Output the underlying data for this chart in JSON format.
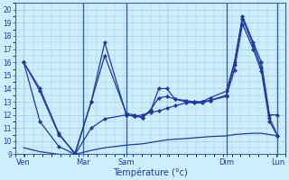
{
  "xlabel": "Température (°c)",
  "background_color": "#cceeff",
  "grid_color": "#aaccdd",
  "line_color": "#1a3aaa",
  "vline_color": "#3366aa",
  "spine_color": "#3366aa",
  "xlim": [
    0,
    1
  ],
  "ylim": [
    9,
    20
  ],
  "yticks": [
    9,
    10,
    11,
    12,
    13,
    14,
    15,
    16,
    17,
    18,
    19,
    20
  ],
  "xtick_positions": [
    0.03,
    0.25,
    0.41,
    0.56,
    0.78,
    0.97
  ],
  "xtick_labels": [
    "Ven",
    "Mar",
    "Sam",
    "",
    "Dim",
    "Lun"
  ],
  "vline_positions": [
    0.25,
    0.41,
    0.78,
    0.97
  ],
  "line1_x": [
    0.03,
    0.09,
    0.16,
    0.22,
    0.28,
    0.33,
    0.41,
    0.44,
    0.47,
    0.5,
    0.53,
    0.56,
    0.59,
    0.63,
    0.66,
    0.69,
    0.72,
    0.78,
    0.81,
    0.84,
    0.88,
    0.91,
    0.94,
    0.97
  ],
  "line1_y": [
    16,
    14,
    10.6,
    9.0,
    13.0,
    17.5,
    12.0,
    11.9,
    11.8,
    12.3,
    14.0,
    14.0,
    13.2,
    13.1,
    13.0,
    13.0,
    13.3,
    13.8,
    16.0,
    19.5,
    17.5,
    16.0,
    12.0,
    12.0
  ],
  "line2_x": [
    0.03,
    0.09,
    0.16,
    0.22,
    0.28,
    0.33,
    0.41,
    0.44,
    0.47,
    0.5,
    0.53,
    0.56,
    0.59,
    0.63,
    0.66,
    0.69,
    0.72,
    0.78,
    0.81,
    0.84,
    0.88,
    0.91,
    0.94,
    0.97
  ],
  "line2_y": [
    16,
    13.8,
    10.5,
    9.1,
    13.0,
    16.5,
    12.1,
    12.0,
    11.8,
    12.4,
    13.3,
    13.4,
    13.2,
    13.0,
    12.9,
    12.9,
    13.1,
    13.5,
    15.8,
    19.3,
    17.3,
    15.6,
    11.8,
    10.4
  ],
  "line3_x": [
    0.03,
    0.09,
    0.16,
    0.22,
    0.28,
    0.33,
    0.41,
    0.44,
    0.47,
    0.5,
    0.53,
    0.56,
    0.59,
    0.63,
    0.66,
    0.69,
    0.72,
    0.78,
    0.81,
    0.84,
    0.88,
    0.91,
    0.94,
    0.97
  ],
  "line3_y": [
    16,
    11.5,
    9.6,
    9.0,
    11.0,
    11.7,
    12.0,
    11.9,
    12.0,
    12.2,
    12.3,
    12.5,
    12.7,
    12.9,
    13.0,
    13.0,
    13.1,
    13.4,
    15.4,
    18.9,
    17.0,
    15.3,
    11.5,
    10.4
  ],
  "line4_x": [
    0.03,
    0.09,
    0.16,
    0.22,
    0.28,
    0.33,
    0.41,
    0.44,
    0.47,
    0.5,
    0.53,
    0.56,
    0.59,
    0.63,
    0.66,
    0.69,
    0.72,
    0.78,
    0.81,
    0.84,
    0.88,
    0.91,
    0.94,
    0.97
  ],
  "line4_y": [
    9.5,
    9.2,
    9.0,
    9.0,
    9.3,
    9.5,
    9.7,
    9.75,
    9.8,
    9.9,
    10.0,
    10.1,
    10.15,
    10.2,
    10.25,
    10.3,
    10.35,
    10.4,
    10.5,
    10.55,
    10.6,
    10.6,
    10.5,
    10.4
  ]
}
